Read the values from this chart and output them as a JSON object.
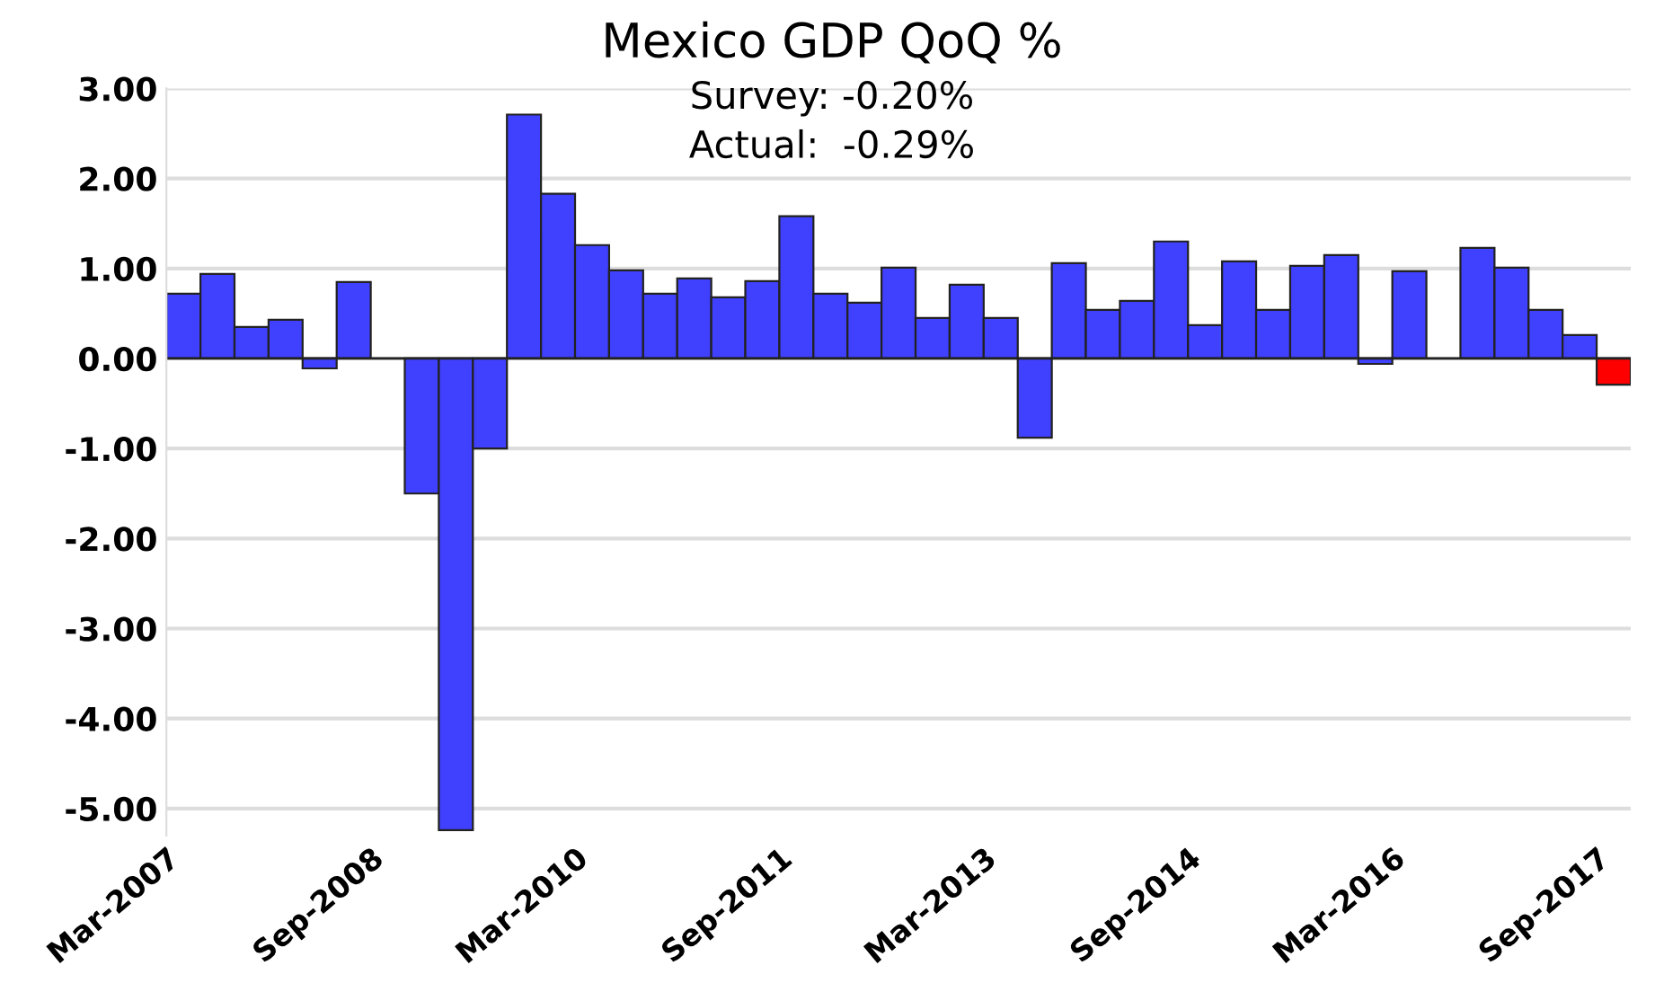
{
  "chart_data": {
    "type": "bar",
    "title": "Mexico GDP QoQ %",
    "annotations": [
      "Survey: -0.20%",
      "Actual:  -0.29%"
    ],
    "categories": [
      "Mar-2007",
      null,
      null,
      null,
      null,
      null,
      "Sep-2008",
      null,
      null,
      null,
      null,
      null,
      "Mar-2010",
      null,
      null,
      null,
      null,
      null,
      "Sep-2011",
      null,
      null,
      null,
      null,
      null,
      "Mar-2013",
      null,
      null,
      null,
      null,
      null,
      "Sep-2014",
      null,
      null,
      null,
      null,
      null,
      "Mar-2016",
      null,
      null,
      null,
      null,
      null,
      "Sep-2017"
    ],
    "values": [
      0.72,
      0.94,
      0.35,
      0.43,
      -0.11,
      0.85,
      null,
      -1.5,
      -5.24,
      -1.0,
      2.71,
      1.83,
      1.26,
      0.98,
      0.72,
      0.89,
      0.68,
      0.86,
      1.58,
      0.72,
      0.62,
      1.01,
      0.45,
      0.82,
      0.45,
      -0.88,
      1.06,
      0.54,
      0.64,
      1.3,
      0.37,
      1.08,
      0.54,
      1.03,
      1.15,
      -0.06,
      0.97,
      null,
      1.23,
      1.01,
      0.54,
      0.26,
      -0.29
    ],
    "colors": [
      "#4040ff",
      "#4040ff",
      "#4040ff",
      "#4040ff",
      "#4040ff",
      "#4040ff",
      "#4040ff",
      "#4040ff",
      "#4040ff",
      "#4040ff",
      "#4040ff",
      "#4040ff",
      "#4040ff",
      "#4040ff",
      "#4040ff",
      "#4040ff",
      "#4040ff",
      "#4040ff",
      "#4040ff",
      "#4040ff",
      "#4040ff",
      "#4040ff",
      "#4040ff",
      "#4040ff",
      "#4040ff",
      "#4040ff",
      "#4040ff",
      "#4040ff",
      "#4040ff",
      "#4040ff",
      "#4040ff",
      "#4040ff",
      "#4040ff",
      "#4040ff",
      "#4040ff",
      "#4040ff",
      "#4040ff",
      "#4040ff",
      "#4040ff",
      "#4040ff",
      "#4040ff",
      "#4040ff",
      "#ff0000"
    ],
    "ylim": [
      -5.3,
      3.0
    ],
    "yticks": [
      {
        "value": -5,
        "label": "-5.00"
      },
      {
        "value": -4,
        "label": "-4.00"
      },
      {
        "value": -3,
        "label": "-3.00"
      },
      {
        "value": -2,
        "label": "-2.00"
      },
      {
        "value": -1,
        "label": "-1.00"
      },
      {
        "value": 0,
        "label": "0.00"
      },
      {
        "value": 1,
        "label": "1.00"
      },
      {
        "value": 2,
        "label": "2.00"
      },
      {
        "value": 3,
        "label": "3.00"
      }
    ],
    "grid": "y",
    "legend": false
  }
}
